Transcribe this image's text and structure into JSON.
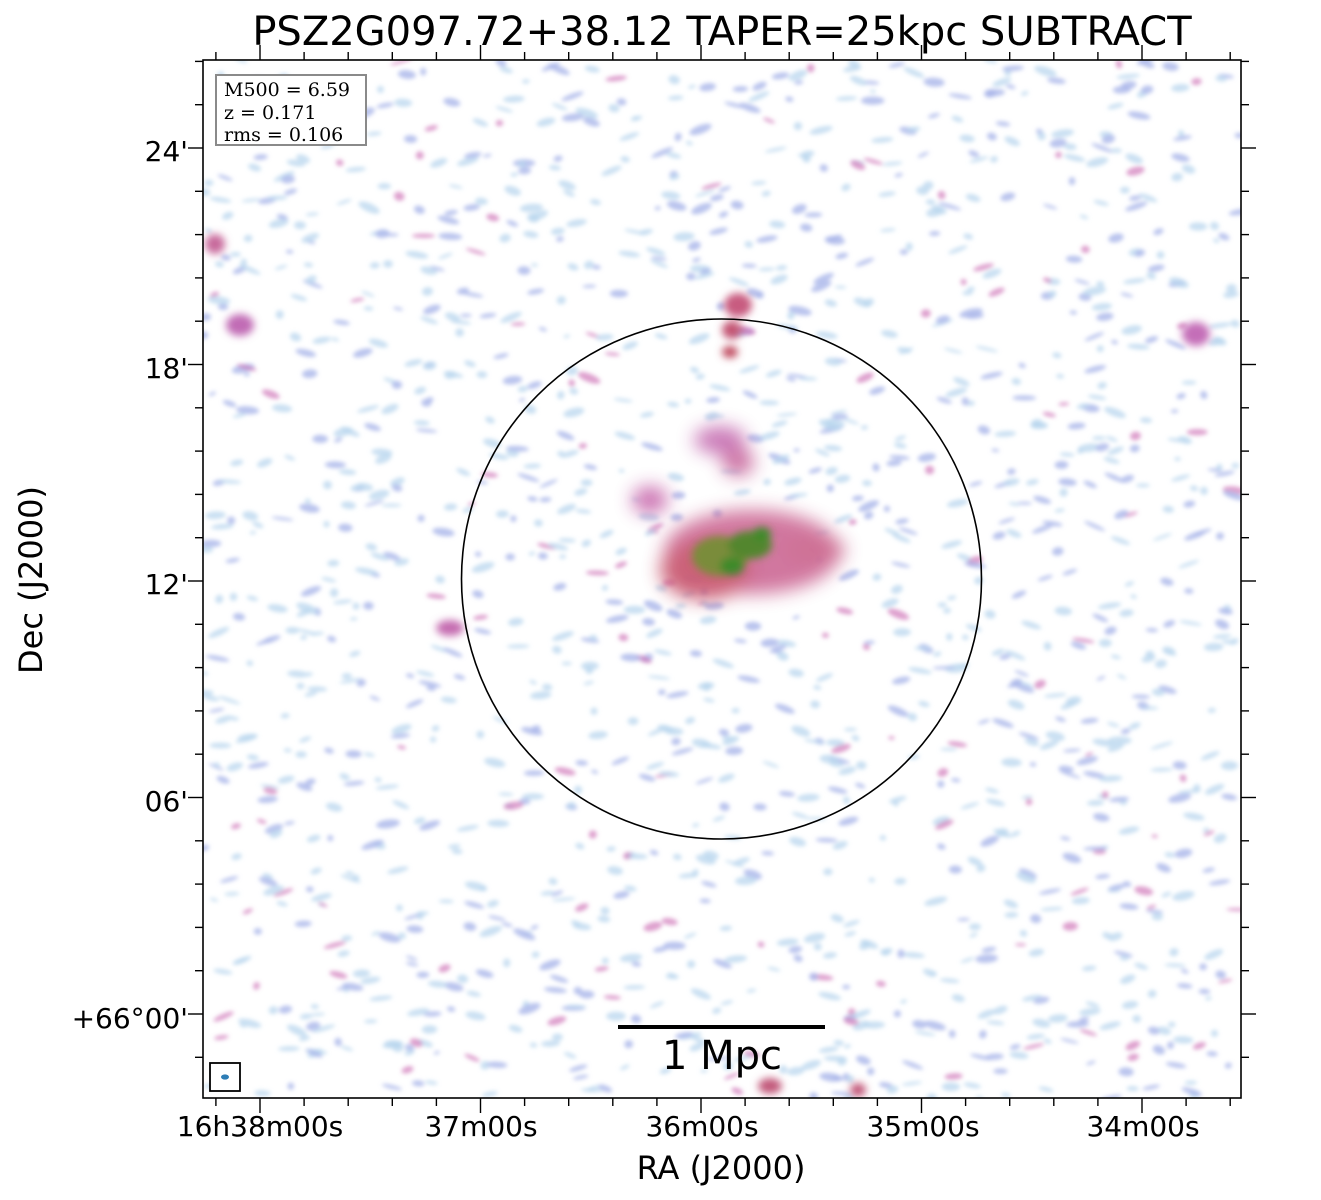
{
  "title": "PSZ2G097.72+38.12 TAPER=25kpc SUBTRACT",
  "info": {
    "m500": "M500 = 6.59",
    "z": "z = 0.171",
    "rms": "rms = 0.106"
  },
  "scale_bar_label": "1 Mpc",
  "axes": {
    "x_label": "RA (J2000)",
    "y_label": "Dec (J2000)",
    "x_ticks": [
      "16h38m00s",
      "37m00s",
      "36m00s",
      "35m00s",
      "34m00s"
    ],
    "y_ticks": [
      "24'",
      "18'",
      "12'",
      "06'",
      "+66°00'"
    ]
  },
  "colors": {
    "noise_light": "#b8d6ee",
    "noise_mid": "#a9b5ea",
    "emission_pink": "#cc6fb4",
    "emission_red": "#c8445e",
    "core_green": "#3f8a2c",
    "frame": "#000000"
  }
}
